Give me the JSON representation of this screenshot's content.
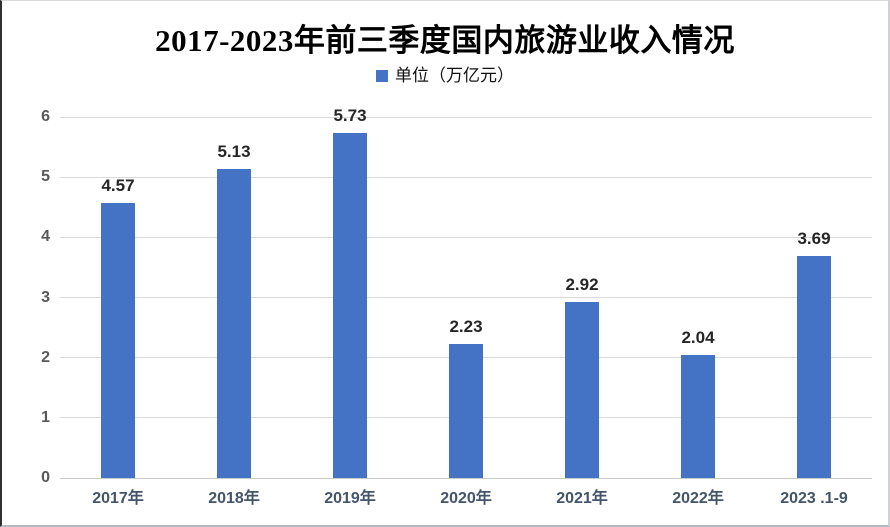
{
  "chart": {
    "title": "2017-2023年前三季度国内旅游业收入情况",
    "legend": {
      "label": "单位（万亿元）"
    }
  },
  "chart_data": {
    "type": "bar",
    "title": "2017-2023年前三季度国内旅游业收入情况",
    "legend": [
      "单位（万亿元）"
    ],
    "legend_position": "top",
    "categories": [
      "2017年",
      "2018年",
      "2019年",
      "2020年",
      "2021年",
      "2022年",
      "2023 .1-9"
    ],
    "values": [
      4.57,
      5.13,
      5.73,
      2.23,
      2.92,
      2.04,
      3.69
    ],
    "value_labels": [
      "4.57",
      "5.13",
      "5.73",
      "2.23",
      "2.92",
      "2.04",
      "3.69"
    ],
    "xlabel": "",
    "ylabel": "",
    "ylim": [
      0,
      6
    ],
    "yticks": [
      0,
      1,
      2,
      3,
      4,
      5,
      6
    ],
    "grid": true
  },
  "colors": {
    "bar": "#4472c4",
    "legend_marker": "#4472c4",
    "gridline": "#d9d9d9",
    "axis_baseline": "#c6c9cc",
    "ytick_label": "#595959",
    "category_label": "#44546a",
    "value_label": "#262626",
    "title": "#000000"
  }
}
